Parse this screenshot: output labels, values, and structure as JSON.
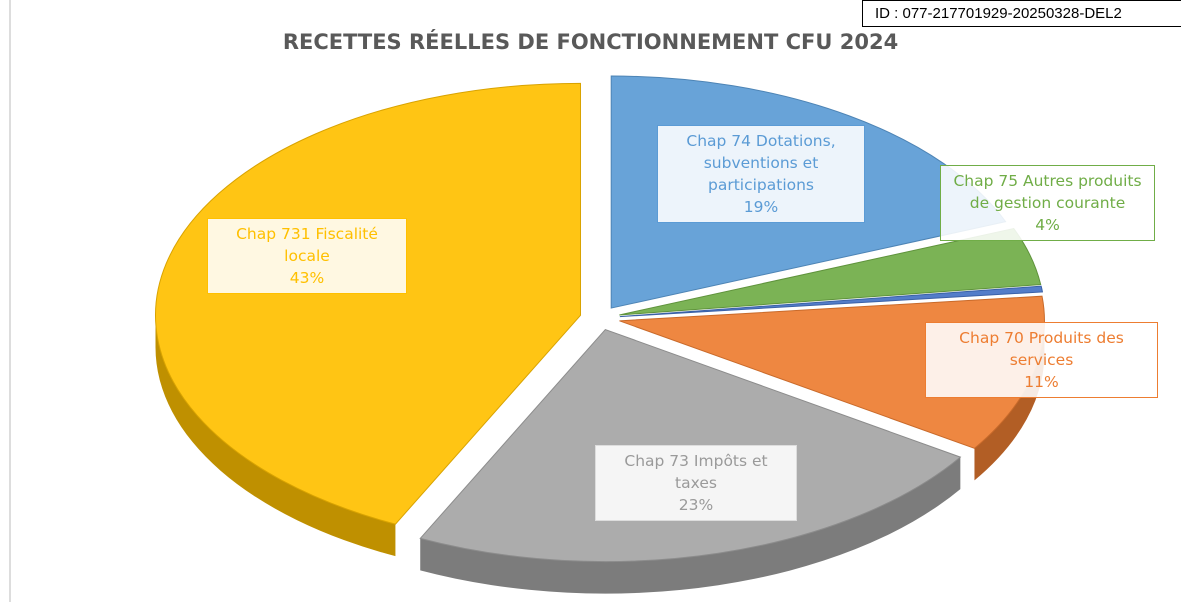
{
  "stamp": "ID : 077-217701929-20250328-DEL2",
  "chart_data": {
    "type": "pie",
    "title": "RECETTES RÉELLES DE FONCTIONNEMENT CFU 2024",
    "categories": [
      "Chap 74 Dotations, subventions et participations",
      "Chap 75 Autres produits de gestion courante",
      null,
      "Chap 70 Produits des services",
      "Chap 73 Impôts et taxes",
      "Chap 731 Fiscalité locale"
    ],
    "values": [
      19,
      4,
      0.4,
      11,
      23,
      43
    ],
    "value_labels": [
      "19%",
      "4%",
      null,
      "11%",
      "23%",
      "43%"
    ],
    "colors": [
      "#5b9bd5",
      "#70ad47",
      "#4472c4",
      "#ed7d31",
      "#a5a5a5",
      "#ffc000"
    ]
  }
}
